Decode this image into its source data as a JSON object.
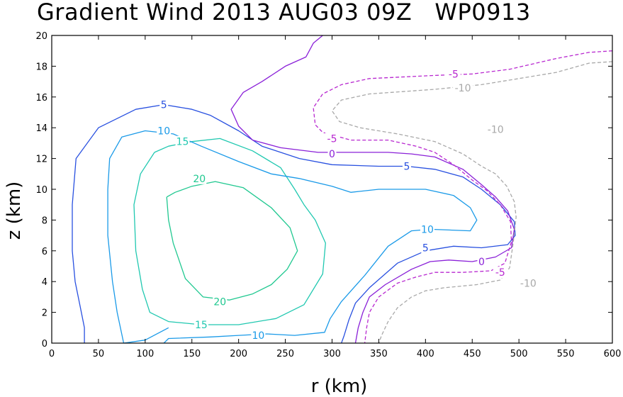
{
  "chart_data": {
    "type": "contour",
    "title": "Gradient Wind 2013 AUG03 09Z   WP0913",
    "xlabel": "r (km)",
    "ylabel": "z (km)",
    "xlim": [
      0,
      600
    ],
    "ylim": [
      0,
      20
    ],
    "xticks": [
      0,
      50,
      100,
      150,
      200,
      250,
      300,
      350,
      400,
      450,
      500,
      550,
      600
    ],
    "yticks": [
      0,
      2,
      4,
      6,
      8,
      10,
      12,
      14,
      16,
      18,
      20
    ],
    "grid": false,
    "levels": [
      {
        "value": 20,
        "color": "#20c890",
        "style": "solid",
        "points": [
          [
            123,
            9.5
          ],
          [
            125,
            8
          ],
          [
            130,
            6.5
          ],
          [
            143,
            4.2
          ],
          [
            162,
            3
          ],
          [
            190,
            2.8
          ],
          [
            215,
            3.2
          ],
          [
            235,
            3.8
          ],
          [
            252,
            4.8
          ],
          [
            263,
            6
          ],
          [
            255,
            7.5
          ],
          [
            235,
            8.8
          ],
          [
            205,
            10.1
          ],
          [
            175,
            10.5
          ],
          [
            150,
            10.2
          ],
          [
            132,
            9.8
          ],
          [
            123,
            9.5
          ]
        ],
        "labels": [
          [
            158,
            10.7
          ],
          [
            180,
            2.7
          ]
        ]
      },
      {
        "value": 15,
        "color": "#20c8b0",
        "style": "solid",
        "points": [
          [
            110,
            12.4
          ],
          [
            95,
            11
          ],
          [
            88,
            9
          ],
          [
            90,
            6
          ],
          [
            97,
            3.5
          ],
          [
            105,
            2
          ],
          [
            125,
            1.4
          ],
          [
            160,
            1.2
          ],
          [
            200,
            1.2
          ],
          [
            240,
            1.6
          ],
          [
            270,
            2.5
          ],
          [
            290,
            4.5
          ],
          [
            293,
            6.5
          ],
          [
            282,
            8
          ],
          [
            270,
            9
          ],
          [
            260,
            10
          ],
          [
            245,
            11.4
          ],
          [
            215,
            12.5
          ],
          [
            180,
            13.3
          ],
          [
            150,
            13.1
          ],
          [
            125,
            12.8
          ],
          [
            110,
            12.4
          ]
        ],
        "labels": [
          [
            140,
            13.1
          ],
          [
            160,
            1.2
          ]
        ]
      },
      {
        "value": 10,
        "color": "#1a9ae8",
        "style": "solid",
        "points": [
          [
            125,
            1.0
          ],
          [
            100,
            0.2
          ],
          [
            77,
            0
          ],
          [
            70,
            2
          ],
          [
            65,
            4
          ],
          [
            60,
            7
          ],
          [
            60,
            10
          ],
          [
            62,
            12
          ],
          [
            75,
            13.4
          ],
          [
            100,
            13.8
          ],
          [
            130,
            13.6
          ],
          [
            160,
            12.8
          ],
          [
            200,
            11.8
          ],
          [
            235,
            11
          ],
          [
            265,
            10.7
          ],
          [
            300,
            10.2
          ],
          [
            320,
            9.8
          ],
          [
            350,
            10
          ],
          [
            400,
            10
          ],
          [
            430,
            9.6
          ],
          [
            448,
            8.8
          ],
          [
            455,
            8
          ],
          [
            448,
            7.3
          ],
          [
            405,
            7.4
          ],
          [
            385,
            7.3
          ],
          [
            360,
            6.3
          ],
          [
            335,
            4.4
          ],
          [
            310,
            2.7
          ],
          [
            298,
            1.6
          ],
          [
            292,
            0.7
          ],
          [
            260,
            0.5
          ],
          [
            230,
            0.6
          ],
          [
            200,
            0.5
          ],
          [
            170,
            0.4
          ],
          [
            125,
            0.3
          ],
          [
            120,
            0
          ]
        ],
        "labels": [
          [
            120,
            13.8
          ],
          [
            221,
            0.5
          ],
          [
            402,
            7.4
          ]
        ]
      },
      {
        "value": 5,
        "color": "#2850e0",
        "style": "solid",
        "points": [
          [
            35,
            0
          ],
          [
            35,
            1
          ],
          [
            30,
            2.5
          ],
          [
            25,
            4
          ],
          [
            22,
            6
          ],
          [
            22,
            9
          ],
          [
            26,
            12
          ],
          [
            50,
            14
          ],
          [
            90,
            15.2
          ],
          [
            120,
            15.5
          ],
          [
            150,
            15.2
          ],
          [
            170,
            14.8
          ],
          [
            200,
            13.8
          ],
          [
            225,
            12.8
          ],
          [
            265,
            12
          ],
          [
            300,
            11.6
          ],
          [
            350,
            11.5
          ],
          [
            380,
            11.5
          ],
          [
            410,
            11.3
          ],
          [
            440,
            10.8
          ],
          [
            460,
            10
          ],
          [
            480,
            9
          ],
          [
            495,
            7.9
          ],
          [
            496,
            7
          ],
          [
            488,
            6.4
          ],
          [
            460,
            6.2
          ],
          [
            430,
            6.3
          ],
          [
            400,
            6
          ],
          [
            370,
            5.2
          ],
          [
            340,
            3.6
          ],
          [
            325,
            2.6
          ],
          [
            318,
            1.5
          ],
          [
            313,
            0.5
          ],
          [
            310,
            0
          ]
        ],
        "labels": [
          [
            120,
            15.5
          ],
          [
            380,
            11.5
          ],
          [
            400,
            6.2
          ]
        ]
      },
      {
        "value": 0,
        "color": "#8a20d8",
        "style": "solid",
        "points": [
          [
            290,
            20
          ],
          [
            280,
            19.5
          ],
          [
            272,
            18.6
          ],
          [
            250,
            18
          ],
          [
            225,
            17
          ],
          [
            205,
            16.3
          ],
          [
            192,
            15.2
          ],
          [
            200,
            14.1
          ],
          [
            215,
            13.2
          ],
          [
            245,
            12.7
          ],
          [
            285,
            12.4
          ],
          [
            320,
            12.4
          ],
          [
            360,
            12.4
          ],
          [
            385,
            12.3
          ],
          [
            410,
            12.1
          ],
          [
            440,
            11.3
          ],
          [
            460,
            10.3
          ],
          [
            475,
            9.5
          ],
          [
            488,
            8.6
          ],
          [
            495,
            7.4
          ],
          [
            492,
            6.2
          ],
          [
            475,
            5.6
          ],
          [
            450,
            5.3
          ],
          [
            425,
            5.4
          ],
          [
            405,
            5.3
          ],
          [
            385,
            4.8
          ],
          [
            357,
            3.8
          ],
          [
            340,
            3
          ],
          [
            333,
            2
          ],
          [
            328,
            1
          ],
          [
            325,
            0
          ]
        ],
        "labels": [
          [
            300,
            12.3
          ],
          [
            460,
            5.3
          ]
        ]
      },
      {
        "value": -5,
        "color": "#b828d0",
        "style": "dashed",
        "points": [
          [
            600,
            19
          ],
          [
            575,
            18.9
          ],
          [
            540,
            18.5
          ],
          [
            490,
            17.8
          ],
          [
            450,
            17.5
          ],
          [
            410,
            17.4
          ],
          [
            340,
            17.2
          ],
          [
            310,
            16.8
          ],
          [
            290,
            16.2
          ],
          [
            280,
            15.3
          ],
          [
            282,
            14.2
          ],
          [
            290,
            13.7
          ],
          [
            320,
            13.2
          ],
          [
            360,
            13.2
          ],
          [
            390,
            12.8
          ],
          [
            410,
            12.4
          ],
          [
            430,
            11.6
          ],
          [
            450,
            10.6
          ],
          [
            466,
            9.9
          ],
          [
            480,
            9
          ],
          [
            491,
            7.9
          ],
          [
            492,
            6.6
          ],
          [
            485,
            5.2
          ],
          [
            470,
            4.7
          ],
          [
            440,
            4.6
          ],
          [
            410,
            4.6
          ],
          [
            390,
            4.3
          ],
          [
            370,
            3.9
          ],
          [
            350,
            3
          ],
          [
            340,
            2
          ],
          [
            337,
            1
          ],
          [
            335,
            0
          ]
        ],
        "labels": [
          [
            430,
            17.5
          ],
          [
            300,
            13.3
          ],
          [
            480,
            4.6
          ]
        ]
      },
      {
        "value": -10,
        "color": "#a8a8a8",
        "style": "dashed",
        "points": [
          [
            600,
            18.3
          ],
          [
            575,
            18.2
          ],
          [
            540,
            17.6
          ],
          [
            500,
            17.2
          ],
          [
            460,
            16.8
          ],
          [
            410,
            16.5
          ],
          [
            340,
            16.2
          ],
          [
            310,
            15.8
          ],
          [
            300,
            15.1
          ],
          [
            308,
            14.4
          ],
          [
            330,
            14
          ],
          [
            370,
            13.6
          ],
          [
            410,
            13.1
          ],
          [
            440,
            12.3
          ],
          [
            460,
            11.5
          ],
          [
            475,
            11
          ],
          [
            487,
            10.2
          ],
          [
            495,
            9.2
          ],
          [
            497,
            8.2
          ],
          [
            494,
            6.6
          ],
          [
            490,
            4.9
          ],
          [
            480,
            4.1
          ],
          [
            455,
            3.8
          ],
          [
            420,
            3.6
          ],
          [
            400,
            3.4
          ],
          [
            385,
            3
          ],
          [
            370,
            2.3
          ],
          [
            360,
            1.4
          ],
          [
            353,
            0.5
          ],
          [
            350,
            0
          ]
        ],
        "labels": [
          [
            440,
            16.6
          ],
          [
            475,
            13.9
          ],
          [
            510,
            3.9
          ]
        ]
      }
    ]
  }
}
